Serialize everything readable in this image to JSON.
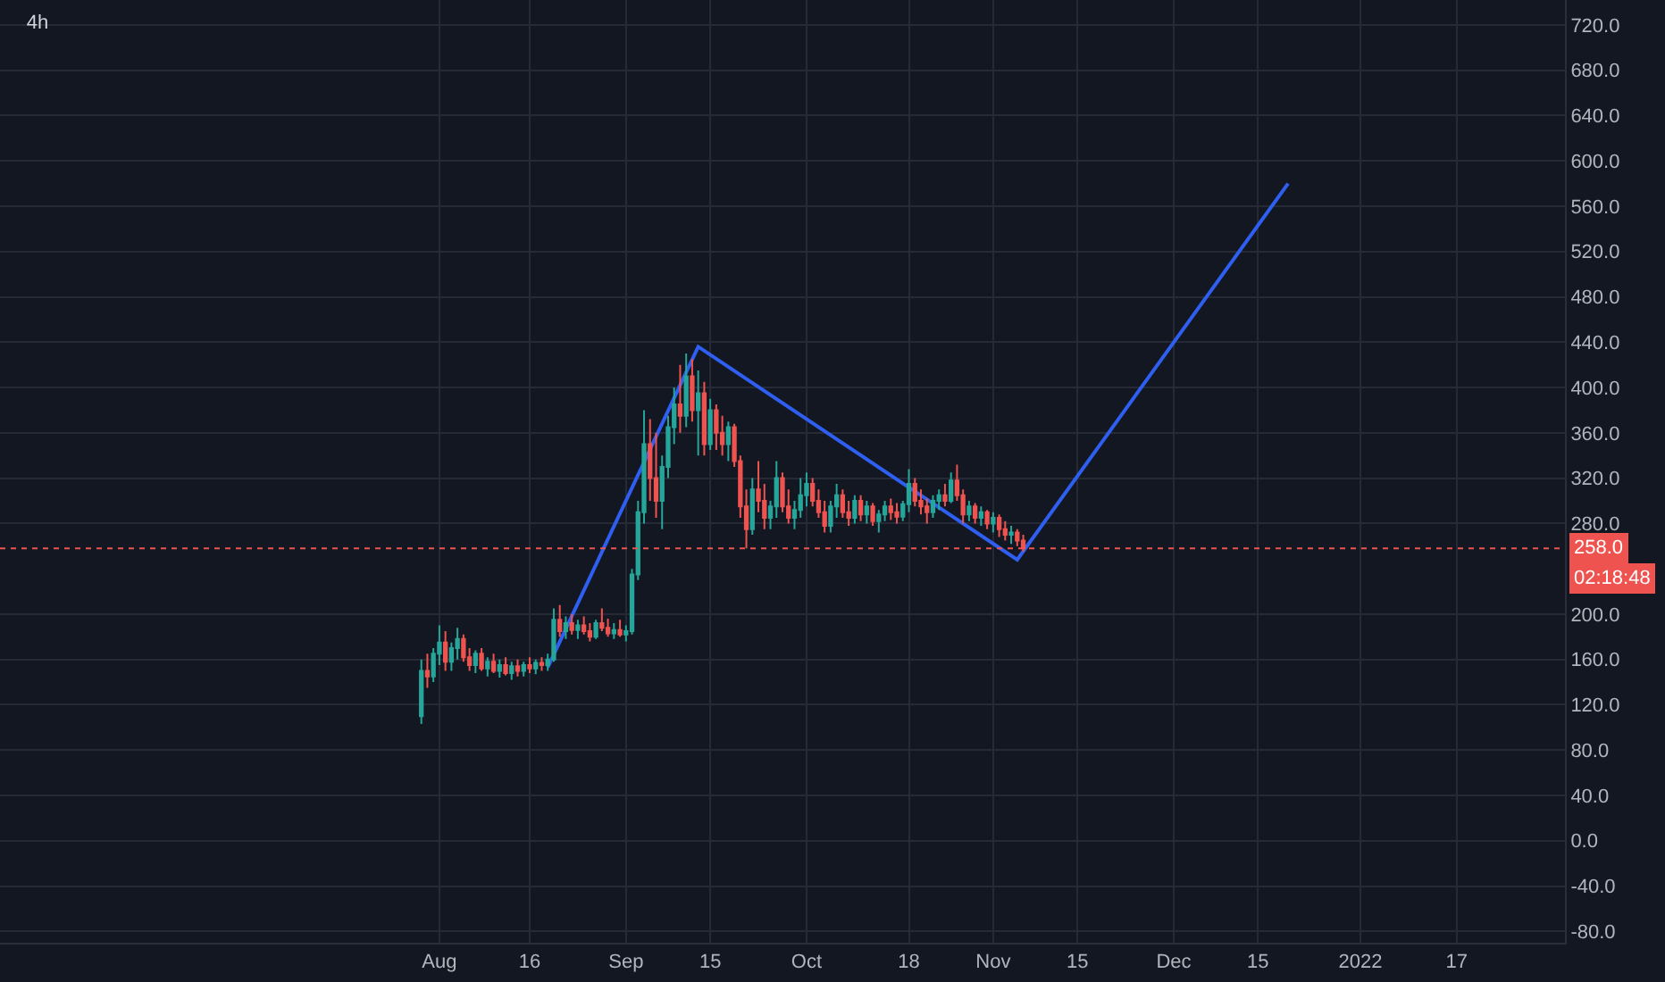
{
  "chart_data": {
    "type": "candlestick",
    "title": "4h",
    "x": [
      "2021-07-29",
      "2021-07-30",
      "2021-07-31",
      "2021-08-01",
      "2021-08-02",
      "2021-08-03",
      "2021-08-04",
      "2021-08-05",
      "2021-08-06",
      "2021-08-07",
      "2021-08-08",
      "2021-08-09",
      "2021-08-10",
      "2021-08-11",
      "2021-08-12",
      "2021-08-13",
      "2021-08-14",
      "2021-08-15",
      "2021-08-16",
      "2021-08-17",
      "2021-08-18",
      "2021-08-19",
      "2021-08-20",
      "2021-08-21",
      "2021-08-22",
      "2021-08-23",
      "2021-08-24",
      "2021-08-25",
      "2021-08-26",
      "2021-08-27",
      "2021-08-28",
      "2021-08-29",
      "2021-08-30",
      "2021-08-31",
      "2021-09-01",
      "2021-09-02",
      "2021-09-03",
      "2021-09-04",
      "2021-09-05",
      "2021-09-06",
      "2021-09-07",
      "2021-09-08",
      "2021-09-09",
      "2021-09-10",
      "2021-09-11",
      "2021-09-12",
      "2021-09-13",
      "2021-09-14",
      "2021-09-15",
      "2021-09-16",
      "2021-09-17",
      "2021-09-18",
      "2021-09-19",
      "2021-09-20",
      "2021-09-21",
      "2021-09-22",
      "2021-09-23",
      "2021-09-24",
      "2021-09-25",
      "2021-09-26",
      "2021-09-27",
      "2021-09-28",
      "2021-09-29",
      "2021-09-30",
      "2021-10-01",
      "2021-10-02",
      "2021-10-03",
      "2021-10-04",
      "2021-10-05",
      "2021-10-06",
      "2021-10-07",
      "2021-10-08",
      "2021-10-09",
      "2021-10-10",
      "2021-10-11",
      "2021-10-12",
      "2021-10-13",
      "2021-10-14",
      "2021-10-15",
      "2021-10-16",
      "2021-10-17",
      "2021-10-18",
      "2021-10-19",
      "2021-10-20",
      "2021-10-21",
      "2021-10-22",
      "2021-10-23",
      "2021-10-24",
      "2021-10-25",
      "2021-10-26",
      "2021-10-27",
      "2021-10-28",
      "2021-10-29",
      "2021-10-30",
      "2021-10-31",
      "2021-11-01",
      "2021-11-02",
      "2021-11-03",
      "2021-11-04",
      "2021-11-05",
      "2021-11-06"
    ],
    "ohlc": [
      [
        110,
        160,
        103,
        150
      ],
      [
        150,
        165,
        135,
        145
      ],
      [
        145,
        170,
        140,
        165
      ],
      [
        165,
        190,
        155,
        175
      ],
      [
        175,
        185,
        150,
        158
      ],
      [
        158,
        175,
        150,
        170
      ],
      [
        170,
        188,
        160,
        178
      ],
      [
        178,
        182,
        158,
        162
      ],
      [
        162,
        170,
        150,
        155
      ],
      [
        155,
        168,
        148,
        165
      ],
      [
        165,
        170,
        150,
        152
      ],
      [
        152,
        162,
        145,
        158
      ],
      [
        158,
        165,
        148,
        150
      ],
      [
        150,
        160,
        144,
        155
      ],
      [
        155,
        162,
        146,
        148
      ],
      [
        148,
        158,
        142,
        154
      ],
      [
        154,
        160,
        145,
        150
      ],
      [
        150,
        158,
        145,
        155
      ],
      [
        155,
        162,
        148,
        152
      ],
      [
        152,
        160,
        147,
        157
      ],
      [
        157,
        162,
        150,
        155
      ],
      [
        155,
        165,
        150,
        160
      ],
      [
        160,
        205,
        158,
        195
      ],
      [
        195,
        208,
        180,
        185
      ],
      [
        185,
        198,
        178,
        192
      ],
      [
        192,
        200,
        182,
        186
      ],
      [
        186,
        195,
        178,
        190
      ],
      [
        190,
        198,
        182,
        185
      ],
      [
        185,
        192,
        176,
        180
      ],
      [
        180,
        195,
        178,
        192
      ],
      [
        192,
        205,
        185,
        188
      ],
      [
        188,
        196,
        180,
        183
      ],
      [
        183,
        192,
        178,
        186
      ],
      [
        186,
        195,
        180,
        182
      ],
      [
        182,
        190,
        176,
        185
      ],
      [
        185,
        240,
        182,
        235
      ],
      [
        235,
        300,
        230,
        290
      ],
      [
        290,
        380,
        280,
        350
      ],
      [
        350,
        372,
        300,
        320
      ],
      [
        320,
        360,
        285,
        300
      ],
      [
        300,
        340,
        275,
        330
      ],
      [
        330,
        375,
        320,
        365
      ],
      [
        365,
        400,
        350,
        385
      ],
      [
        385,
        420,
        360,
        375
      ],
      [
        375,
        430,
        365,
        410
      ],
      [
        410,
        425,
        370,
        380
      ],
      [
        380,
        415,
        340,
        395
      ],
      [
        395,
        405,
        340,
        350
      ],
      [
        350,
        390,
        345,
        380
      ],
      [
        380,
        385,
        345,
        360
      ],
      [
        360,
        375,
        340,
        350
      ],
      [
        350,
        370,
        335,
        365
      ],
      [
        365,
        368,
        330,
        335
      ],
      [
        335,
        340,
        285,
        295
      ],
      [
        295,
        310,
        258,
        275
      ],
      [
        275,
        320,
        270,
        310
      ],
      [
        310,
        335,
        290,
        300
      ],
      [
        300,
        315,
        275,
        285
      ],
      [
        285,
        300,
        275,
        295
      ],
      [
        295,
        335,
        285,
        320
      ],
      [
        320,
        325,
        290,
        295
      ],
      [
        295,
        310,
        280,
        285
      ],
      [
        285,
        300,
        275,
        292
      ],
      [
        292,
        320,
        285,
        305
      ],
      [
        305,
        325,
        295,
        315
      ],
      [
        315,
        320,
        295,
        300
      ],
      [
        300,
        310,
        285,
        290
      ],
      [
        290,
        300,
        272,
        278
      ],
      [
        278,
        300,
        272,
        295
      ],
      [
        295,
        315,
        285,
        305
      ],
      [
        305,
        310,
        285,
        290
      ],
      [
        290,
        300,
        278,
        285
      ],
      [
        285,
        305,
        280,
        300
      ],
      [
        300,
        305,
        282,
        288
      ],
      [
        288,
        300,
        280,
        295
      ],
      [
        295,
        298,
        278,
        282
      ],
      [
        282,
        292,
        272,
        288
      ],
      [
        288,
        300,
        282,
        295
      ],
      [
        295,
        302,
        283,
        290
      ],
      [
        290,
        298,
        280,
        286
      ],
      [
        286,
        300,
        282,
        297
      ],
      [
        297,
        328,
        290,
        315
      ],
      [
        315,
        320,
        295,
        300
      ],
      [
        300,
        310,
        288,
        295
      ],
      [
        295,
        302,
        280,
        290
      ],
      [
        290,
        305,
        285,
        300
      ],
      [
        300,
        310,
        292,
        305
      ],
      [
        305,
        315,
        295,
        300
      ],
      [
        300,
        325,
        298,
        318
      ],
      [
        318,
        332,
        300,
        305
      ],
      [
        305,
        310,
        280,
        288
      ],
      [
        288,
        300,
        282,
        295
      ],
      [
        295,
        298,
        280,
        285
      ],
      [
        285,
        295,
        278,
        290
      ],
      [
        290,
        292,
        275,
        280
      ],
      [
        280,
        290,
        272,
        285
      ],
      [
        285,
        288,
        268,
        275
      ],
      [
        275,
        282,
        265,
        270
      ],
      [
        270,
        278,
        262,
        272
      ],
      [
        272,
        275,
        260,
        265
      ],
      [
        265,
        270,
        255,
        258
      ]
    ],
    "series": [
      {
        "type": "line",
        "color": "#2f5ff0",
        "x": [
          "2021-08-19",
          "2021-09-13",
          "2021-11-05",
          "2021-12-20"
        ],
        "values": [
          153,
          436,
          248,
          580
        ]
      }
    ],
    "xlim": [
      "2021-05-20",
      "2022-02-04"
    ],
    "xticks": [
      {
        "value": "2021-08-01",
        "label": "Aug"
      },
      {
        "value": "2021-08-16",
        "label": "16"
      },
      {
        "value": "2021-09-01",
        "label": "Sep"
      },
      {
        "value": "2021-09-15",
        "label": "15"
      },
      {
        "value": "2021-10-01",
        "label": "Oct"
      },
      {
        "value": "2021-10-18",
        "label": "18"
      },
      {
        "value": "2021-11-01",
        "label": "Nov"
      },
      {
        "value": "2021-11-15",
        "label": "15"
      },
      {
        "value": "2021-12-01",
        "label": "Dec"
      },
      {
        "value": "2021-12-15",
        "label": "15"
      },
      {
        "value": "2022-01-01",
        "label": "2022"
      },
      {
        "value": "2022-01-17",
        "label": "17"
      }
    ],
    "ylim": [
      -90,
      742
    ],
    "yticks": [
      {
        "value": -80,
        "label": "-80.0"
      },
      {
        "value": -40,
        "label": "-40.0"
      },
      {
        "value": 0,
        "label": "0.0"
      },
      {
        "value": 40,
        "label": "40.0"
      },
      {
        "value": 80,
        "label": "80.0"
      },
      {
        "value": 120,
        "label": "120.0"
      },
      {
        "value": 160,
        "label": "160.0"
      },
      {
        "value": 200,
        "label": "200.0"
      },
      {
        "value": 280,
        "label": "280.0"
      },
      {
        "value": 320,
        "label": "320.0"
      },
      {
        "value": 360,
        "label": "360.0"
      },
      {
        "value": 400,
        "label": "400.0"
      },
      {
        "value": 440,
        "label": "440.0"
      },
      {
        "value": 480,
        "label": "480.0"
      },
      {
        "value": 520,
        "label": "520.0"
      },
      {
        "value": 560,
        "label": "560.0"
      },
      {
        "value": 600,
        "label": "600.0"
      },
      {
        "value": 640,
        "label": "640.0"
      },
      {
        "value": 680,
        "label": "680.0"
      },
      {
        "value": 720,
        "label": "720.0"
      }
    ],
    "ref_lines": [
      {
        "axis": "y",
        "value": 258,
        "label": "258.0",
        "color": "#ef5350",
        "line_style": "dotted"
      }
    ],
    "annotations": [
      "02:18:48"
    ],
    "grid": true
  }
}
